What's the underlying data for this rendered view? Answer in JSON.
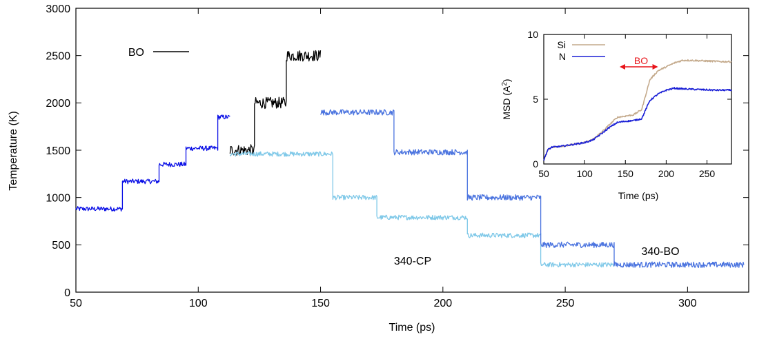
{
  "chart_data": [
    {
      "type": "line",
      "xlabel": "Time (ps)",
      "ylabel": "Temperature (K)",
      "xlim": [
        50,
        325
      ],
      "ylim": [
        0,
        3000
      ],
      "xticks": [
        50,
        100,
        150,
        200,
        250,
        300
      ],
      "yticks": [
        0,
        500,
        1000,
        1500,
        2000,
        2500,
        3000
      ],
      "grid": false,
      "legend": {
        "position": "top-left",
        "entries": [
          {
            "label": "BO",
            "color": "#000000"
          }
        ]
      },
      "annotations": [
        "340-CP",
        "340-BO"
      ],
      "series": [
        {
          "color": "#0b10e6",
          "noise": 25,
          "segments": [
            {
              "x": [
                50,
                69
              ],
              "y": 880
            },
            {
              "x": [
                69,
                84
              ],
              "y": 1170
            },
            {
              "x": [
                84,
                95
              ],
              "y": 1350
            },
            {
              "x": [
                95,
                108
              ],
              "y": 1520
            },
            {
              "x": [
                108,
                113
              ],
              "y": 1850
            }
          ]
        },
        {
          "name": "BO",
          "color": "#000000",
          "noise": 60,
          "segments": [
            {
              "x": [
                113,
                123
              ],
              "y": 1500
            },
            {
              "x": [
                123,
                136
              ],
              "y": 2000
            },
            {
              "x": [
                136,
                150
              ],
              "y": 2500
            }
          ]
        },
        {
          "color": "#7ec8e8",
          "noise": 25,
          "segments": [
            {
              "x": [
                113,
                155
              ],
              "y": 1460
            },
            {
              "x": [
                155,
                173
              ],
              "y": 1000
            },
            {
              "x": [
                173,
                210
              ],
              "y": 790
            },
            {
              "x": [
                210,
                240
              ],
              "y": 600
            },
            {
              "x": [
                240,
                270
              ],
              "y": 290
            }
          ]
        },
        {
          "color": "#4a73df",
          "noise": 30,
          "segments": [
            {
              "x": [
                150,
                180
              ],
              "y": 1900
            },
            {
              "x": [
                180,
                210
              ],
              "y": 1480
            },
            {
              "x": [
                210,
                240
              ],
              "y": 1000
            },
            {
              "x": [
                240,
                270
              ],
              "y": 500
            },
            {
              "x": [
                270,
                323
              ],
              "y": 290
            }
          ]
        }
      ]
    },
    {
      "type": "line",
      "xlabel": "Time (ps)",
      "ylabel": "MSD (A2)",
      "xlim": [
        50,
        280
      ],
      "ylim": [
        0,
        10
      ],
      "xticks": [
        50,
        100,
        150,
        200,
        250
      ],
      "yticks": [
        0,
        5,
        10
      ],
      "grid": false,
      "legend": {
        "position": "top-left",
        "entries": [
          {
            "label": "Si",
            "color": "#c4aa8c"
          },
          {
            "label": "N",
            "color": "#1a1fd6"
          }
        ]
      },
      "annotations": [
        {
          "text": "BO",
          "range": [
            143,
            190
          ],
          "color": "#e8141a"
        }
      ],
      "series": [
        {
          "name": "Si",
          "color": "#c4aa8c",
          "points": [
            [
              50,
              0.3
            ],
            [
              55,
              1.1
            ],
            [
              60,
              1.3
            ],
            [
              70,
              1.35
            ],
            [
              80,
              1.45
            ],
            [
              90,
              1.55
            ],
            [
              100,
              1.65
            ],
            [
              110,
              1.9
            ],
            [
              120,
              2.4
            ],
            [
              130,
              3.0
            ],
            [
              140,
              3.6
            ],
            [
              150,
              3.7
            ],
            [
              160,
              3.8
            ],
            [
              170,
              4.2
            ],
            [
              180,
              6.5
            ],
            [
              190,
              7.2
            ],
            [
              200,
              7.5
            ],
            [
              210,
              7.8
            ],
            [
              220,
              8.0
            ],
            [
              230,
              8.0
            ],
            [
              250,
              7.95
            ],
            [
              270,
              7.9
            ],
            [
              280,
              7.9
            ]
          ]
        },
        {
          "name": "N",
          "color": "#1a1fd6",
          "points": [
            [
              50,
              0.3
            ],
            [
              55,
              1.1
            ],
            [
              60,
              1.3
            ],
            [
              70,
              1.35
            ],
            [
              80,
              1.45
            ],
            [
              90,
              1.55
            ],
            [
              100,
              1.65
            ],
            [
              110,
              1.85
            ],
            [
              120,
              2.3
            ],
            [
              130,
              2.8
            ],
            [
              140,
              3.2
            ],
            [
              150,
              3.3
            ],
            [
              160,
              3.35
            ],
            [
              170,
              3.5
            ],
            [
              180,
              4.9
            ],
            [
              190,
              5.4
            ],
            [
              200,
              5.7
            ],
            [
              210,
              5.85
            ],
            [
              220,
              5.8
            ],
            [
              240,
              5.75
            ],
            [
              260,
              5.7
            ],
            [
              280,
              5.7
            ]
          ]
        }
      ]
    }
  ]
}
